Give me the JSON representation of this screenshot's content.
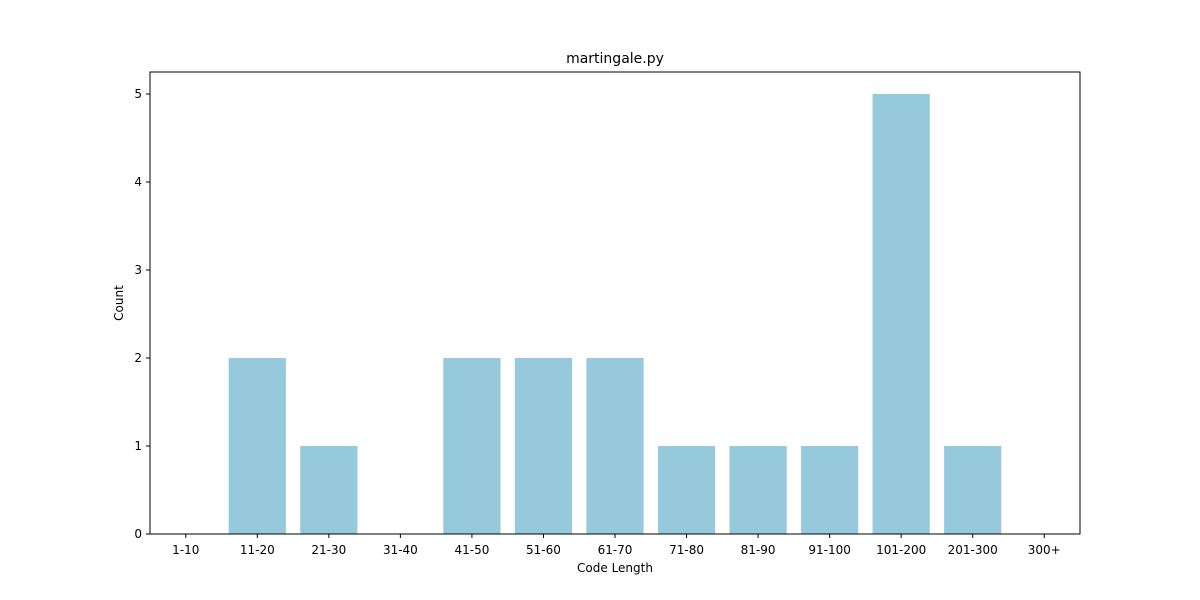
{
  "chart_data": {
    "type": "bar",
    "title": "martingale.py",
    "xlabel": "Code Length",
    "ylabel": "Count",
    "categories": [
      "1-10",
      "11-20",
      "21-30",
      "31-40",
      "41-50",
      "51-60",
      "61-70",
      "71-80",
      "81-90",
      "91-100",
      "101-200",
      "201-300",
      "300+"
    ],
    "values": [
      0,
      2,
      1,
      0,
      2,
      2,
      2,
      1,
      1,
      1,
      5,
      1,
      0
    ],
    "ylim": [
      0,
      5.25
    ],
    "yticks": [
      0,
      1,
      2,
      3,
      4,
      5
    ],
    "grid": false,
    "bar_color": "#96c9dc"
  }
}
